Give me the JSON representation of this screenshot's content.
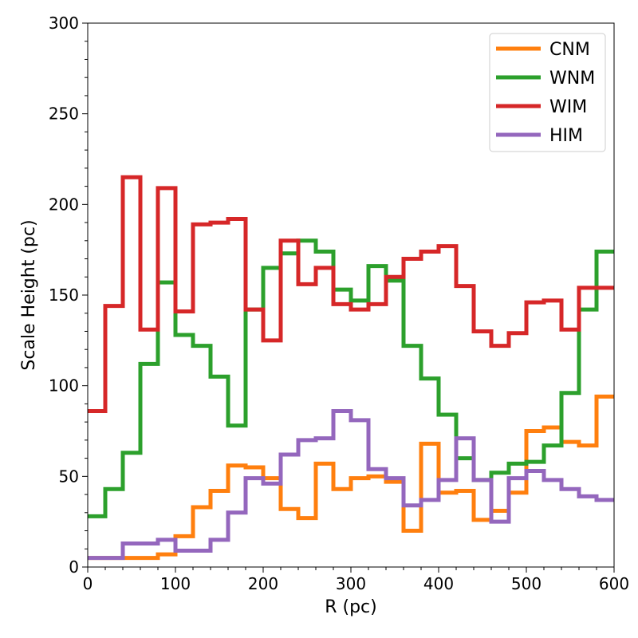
{
  "chart_data": {
    "type": "line",
    "drawstyle": "steps-post",
    "xlabel": "R (pc)",
    "ylabel": "Scale Height (pc)",
    "xlim": [
      0,
      600
    ],
    "ylim": [
      0,
      300
    ],
    "xticks": [
      0,
      100,
      200,
      300,
      400,
      500,
      600
    ],
    "yticks": [
      0,
      50,
      100,
      150,
      200,
      250,
      300
    ],
    "grid": false,
    "legend_position": "top-right",
    "bin_edges": [
      0,
      20,
      40,
      60,
      80,
      100,
      120,
      140,
      160,
      180,
      200,
      220,
      240,
      260,
      280,
      300,
      320,
      340,
      360,
      380,
      400,
      420,
      440,
      460,
      480,
      500,
      520,
      540,
      560,
      580,
      600
    ],
    "series": [
      {
        "name": "CNM",
        "color": "#ff7f0e",
        "values": [
          5,
          5,
          5,
          5,
          7,
          17,
          33,
          42,
          56,
          55,
          49,
          32,
          27,
          57,
          43,
          49,
          50,
          47,
          20,
          68,
          41,
          42,
          26,
          31,
          41,
          75,
          77,
          69,
          67,
          94
        ]
      },
      {
        "name": "WNM",
        "color": "#2ca02c",
        "values": [
          28,
          43,
          63,
          112,
          157,
          128,
          122,
          105,
          78,
          142,
          165,
          173,
          180,
          174,
          153,
          147,
          166,
          158,
          122,
          104,
          84,
          60,
          48,
          52,
          57,
          58,
          67,
          96,
          142,
          174
        ]
      },
      {
        "name": "WIM",
        "color": "#d62728",
        "values": [
          86,
          144,
          215,
          131,
          209,
          141,
          189,
          190,
          192,
          142,
          125,
          180,
          156,
          165,
          145,
          142,
          145,
          160,
          170,
          174,
          177,
          155,
          130,
          122,
          129,
          146,
          147,
          131,
          154,
          154
        ]
      },
      {
        "name": "HIM",
        "color": "#9467bd",
        "values": [
          5,
          5,
          13,
          13,
          15,
          9,
          9,
          15,
          30,
          49,
          46,
          62,
          70,
          71,
          86,
          81,
          54,
          49,
          34,
          37,
          48,
          71,
          48,
          25,
          49,
          53,
          48,
          43,
          39,
          37
        ]
      }
    ]
  }
}
